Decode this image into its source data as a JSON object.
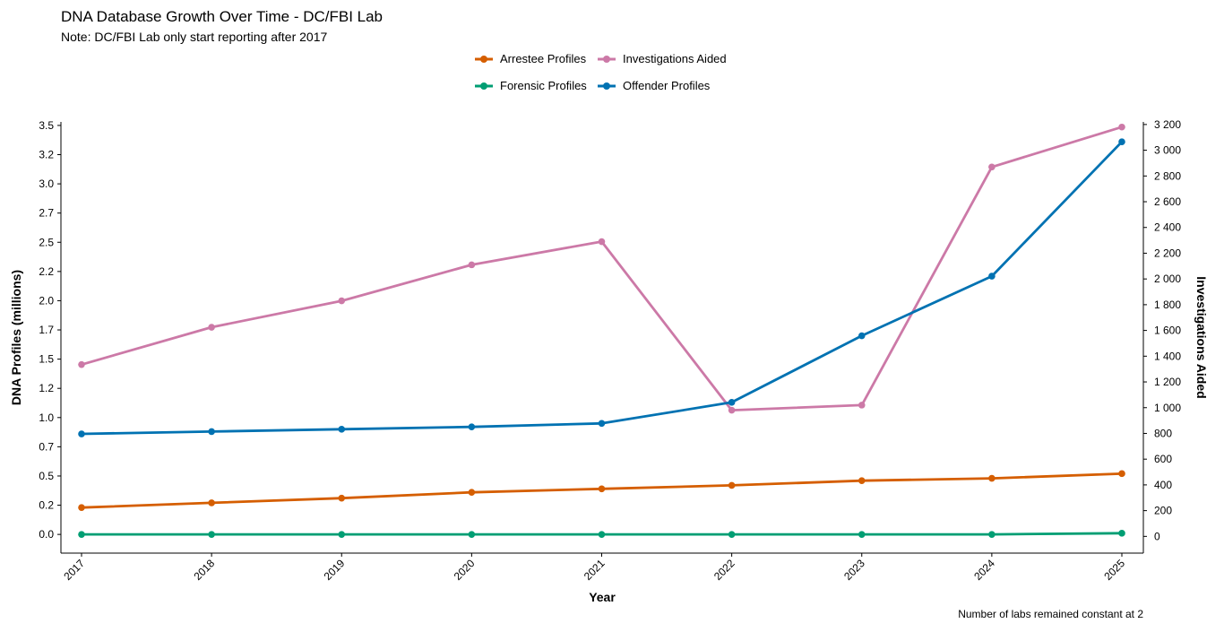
{
  "chart_data": {
    "type": "line",
    "title": "DNA Database Growth Over Time - DC/FBI Lab",
    "subtitle": "Note: DC/FBI Lab only start reporting after 2017",
    "caption": "Number of labs remained constant at 2",
    "xlabel": "Year",
    "ylabel_left": "DNA Profiles (millions)",
    "ylabel_right": "Investigations Aided",
    "x": [
      "2017",
      "2018",
      "2019",
      "2020",
      "2021",
      "2022",
      "2023",
      "2024",
      "2025"
    ],
    "y_left_ticks": [
      "0.0",
      "0.2",
      "0.5",
      "0.7",
      "1.0",
      "1.2",
      "1.5",
      "1.7",
      "2.0",
      "2.2",
      "2.5",
      "2.7",
      "3.0",
      "3.2",
      "3.5"
    ],
    "y_left_tick_values": [
      0,
      0.25,
      0.5,
      0.75,
      1.0,
      1.25,
      1.5,
      1.75,
      2.0,
      2.25,
      2.5,
      2.75,
      3.0,
      3.25,
      3.5
    ],
    "y_right_ticks": [
      "0",
      "200",
      "400",
      "600",
      "800",
      "1 000",
      "1 200",
      "1 400",
      "1 600",
      "1 800",
      "2 000",
      "2 200",
      "2 400",
      "2 600",
      "2 800",
      "3 000",
      "3 200"
    ],
    "y_right_tick_values": [
      0,
      200,
      400,
      600,
      800,
      1000,
      1200,
      1400,
      1600,
      1800,
      2000,
      2200,
      2400,
      2600,
      2800,
      3000,
      3200
    ],
    "ylim_left": [
      -0.16,
      3.53
    ],
    "ylim_right": [
      -130,
      3220
    ],
    "legend_position": "top-center",
    "grid": false,
    "series": [
      {
        "name": "Arrestee Profiles",
        "axis": "left",
        "color": "#D55E00",
        "values": [
          0.23,
          0.27,
          0.31,
          0.36,
          0.39,
          0.42,
          0.46,
          0.48,
          0.52
        ]
      },
      {
        "name": "Forensic Profiles",
        "axis": "left",
        "color": "#009E73",
        "values": [
          0.0,
          0.0,
          0.0,
          0.0,
          0.0,
          0.0,
          0.0,
          0.0,
          0.01
        ]
      },
      {
        "name": "Offender Profiles",
        "axis": "left",
        "color": "#0072B2",
        "values": [
          0.86,
          0.88,
          0.9,
          0.92,
          0.95,
          1.13,
          1.7,
          2.21,
          3.36
        ]
      },
      {
        "name": "Investigations Aided",
        "axis": "right",
        "color": "#CC79A7",
        "values": [
          1335,
          1625,
          1830,
          2110,
          2290,
          980,
          1020,
          2870,
          3180
        ]
      }
    ]
  }
}
